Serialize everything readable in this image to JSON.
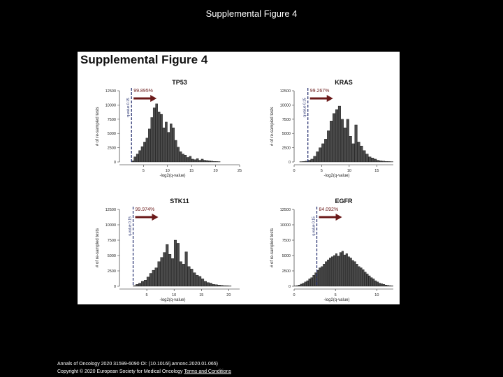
{
  "slide_title": "Supplemental Figure 4",
  "figure_heading": "Supplemental Figure 4",
  "footer": {
    "citation": "Annals of Oncology 2020 31599-6090 OI: (10.1016/j.annonc.2020.01.065)",
    "copyright": "Copyright © 2020 European Society for Medical Oncology",
    "link_text": "Terms and Conditions"
  },
  "colors": {
    "bar_fill": "#4a4a4a",
    "arrow": "#6b1a1a",
    "line": "#1f2a6b",
    "background": "#ffffff"
  },
  "chart_data": [
    {
      "type": "bar",
      "title": "TP53",
      "xlabel": "-log2(q-value)",
      "ylabel": "# of re-sampled tests",
      "xlim": [
        0,
        25
      ],
      "ylim": [
        0,
        12500
      ],
      "xticks": [
        "5",
        "10",
        "15",
        "20",
        "25"
      ],
      "yticks": [
        "0",
        "2500",
        "5000",
        "7500",
        "10000",
        "12500"
      ],
      "bin_start": 2.5,
      "bin_width": 0.5,
      "values": [
        200,
        900,
        1400,
        2000,
        2700,
        3500,
        4200,
        5800,
        7800,
        9500,
        10200,
        8800,
        8400,
        6000,
        7000,
        5200,
        6700,
        6000,
        3800,
        2600,
        1800,
        1400,
        1200,
        800,
        1000,
        500,
        400,
        600,
        300,
        500,
        300,
        250,
        200,
        150,
        100,
        80,
        60
      ],
      "threshold_x": 2.5,
      "threshold_label": "q-value 0.15",
      "annotation": "99.895%"
    },
    {
      "type": "bar",
      "title": "KRAS",
      "xlabel": "-log2(q-value)",
      "ylabel": "# of re-sampled tests",
      "xlim": [
        0,
        18
      ],
      "ylim": [
        0,
        12500
      ],
      "xticks": [
        "0",
        "5",
        "10",
        "15"
      ],
      "yticks": [
        "0",
        "2500",
        "5000",
        "7500",
        "10000",
        "12500"
      ],
      "bin_start": 1.0,
      "bin_width": 0.5,
      "values": [
        50,
        80,
        150,
        300,
        500,
        1000,
        1800,
        2500,
        3200,
        4000,
        5500,
        7200,
        8500,
        9200,
        9800,
        7500,
        6000,
        7500,
        4500,
        3200,
        6500,
        3500,
        2800,
        2000,
        1400,
        900,
        700,
        500,
        300,
        200,
        150,
        100,
        80,
        50
      ],
      "threshold_x": 2.5,
      "threshold_label": "q-value 0.15",
      "annotation": "99.267%"
    },
    {
      "type": "bar",
      "title": "STK11",
      "xlabel": "-log2(q-value)",
      "ylabel": "# of re-sampled tests",
      "xlim": [
        0,
        22
      ],
      "ylim": [
        0,
        12500
      ],
      "xticks": [
        "5",
        "10",
        "15",
        "20"
      ],
      "yticks": [
        "0",
        "2500",
        "5000",
        "7500",
        "10000",
        "12500"
      ],
      "bin_start": 2.5,
      "bin_width": 0.5,
      "values": [
        100,
        300,
        500,
        800,
        1000,
        1500,
        2100,
        2600,
        3000,
        4000,
        4700,
        5500,
        6800,
        5200,
        4500,
        7500,
        7000,
        4000,
        3600,
        5600,
        3200,
        2800,
        2200,
        1800,
        1600,
        1200,
        800,
        600,
        500,
        300,
        250,
        200,
        150,
        100,
        80,
        50
      ],
      "threshold_x": 2.5,
      "threshold_label": "q-value 0.15",
      "annotation": "99.974%"
    },
    {
      "type": "bar",
      "title": "EGFR",
      "xlabel": "-log2(q-value)",
      "ylabel": "# of re-sampled tests",
      "xlim": [
        0,
        12
      ],
      "ylim": [
        0,
        12500
      ],
      "xticks": [
        "0",
        "5",
        "10"
      ],
      "yticks": [
        "0",
        "2500",
        "5000",
        "7500",
        "10000",
        "12500"
      ],
      "bin_start": 0.0,
      "bin_width": 0.25,
      "values": [
        50,
        100,
        200,
        350,
        500,
        700,
        900,
        1200,
        1400,
        1800,
        2200,
        2600,
        3000,
        3200,
        3600,
        4000,
        4300,
        4600,
        4800,
        5000,
        5300,
        4900,
        5500,
        5700,
        5100,
        5300,
        4800,
        4600,
        4200,
        4000,
        3600,
        3200,
        3000,
        2700,
        2300,
        2000,
        1700,
        1400,
        1200,
        900,
        700,
        500,
        400,
        300,
        200,
        150,
        100,
        60
      ],
      "threshold_x": 2.75,
      "threshold_label": "q-value 0.15",
      "annotation": "84.092%"
    }
  ]
}
